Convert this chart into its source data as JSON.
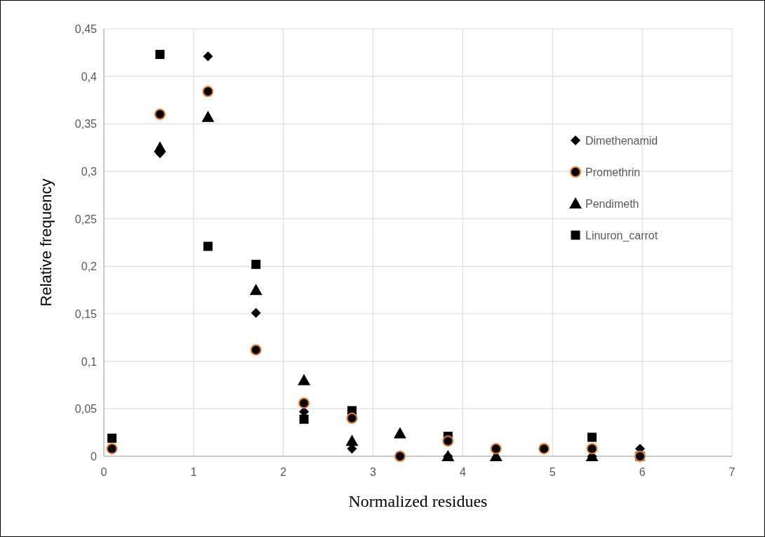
{
  "chart_data": {
    "type": "scatter",
    "xlabel": "Normalized residues",
    "ylabel": "Relative frequency",
    "x": [
      0.09,
      0.625,
      1.16,
      1.695,
      2.23,
      2.765,
      3.3,
      3.835,
      4.37,
      4.905,
      5.44,
      5.975
    ],
    "xlim": [
      0,
      7
    ],
    "xticks": [
      0,
      1,
      2,
      3,
      4,
      5,
      6,
      7
    ],
    "ylim": [
      0,
      0.45
    ],
    "yticks": [
      0,
      {
        "value": 0.05,
        "label": "0,05"
      },
      {
        "value": 0.1,
        "label": "0,1"
      },
      {
        "value": 0.15,
        "label": "0,15"
      },
      {
        "value": 0.2,
        "label": "0,2"
      },
      {
        "value": 0.25,
        "label": "0,25"
      },
      {
        "value": 0.3,
        "label": "0,3"
      },
      {
        "value": 0.35,
        "label": "0,35"
      },
      {
        "value": 0.4,
        "label": "0,4"
      },
      {
        "value": 0.45,
        "label": "0,45"
      }
    ],
    "grid": true,
    "legend": "right",
    "series": [
      {
        "name": "Dimethenamid",
        "color": "#000000",
        "marker": "diamond",
        "values": [
          null,
          0.319,
          0.421,
          0.151,
          0.047,
          0.008,
          null,
          0,
          null,
          null,
          0,
          0.008
        ]
      },
      {
        "name": "Promethrin",
        "color": "#000000",
        "marker": "circle",
        "values": [
          0.008,
          0.36,
          0.384,
          0.112,
          0.056,
          0.04,
          0,
          0.016,
          0.008,
          0.008,
          0.008,
          0
        ]
      },
      {
        "name": "Pendimeth",
        "color": "#000000",
        "marker": "triangle",
        "values": [
          null,
          0.325,
          0.357,
          0.175,
          0.08,
          0.016,
          0.024,
          0,
          0,
          null,
          0,
          null
        ]
      },
      {
        "name": "Linuron_carrot",
        "color": "#000000",
        "marker": "square",
        "values": [
          0.019,
          0.423,
          0.221,
          0.202,
          0.039,
          0.048,
          null,
          0.021,
          null,
          null,
          0.02,
          0
        ]
      }
    ]
  }
}
